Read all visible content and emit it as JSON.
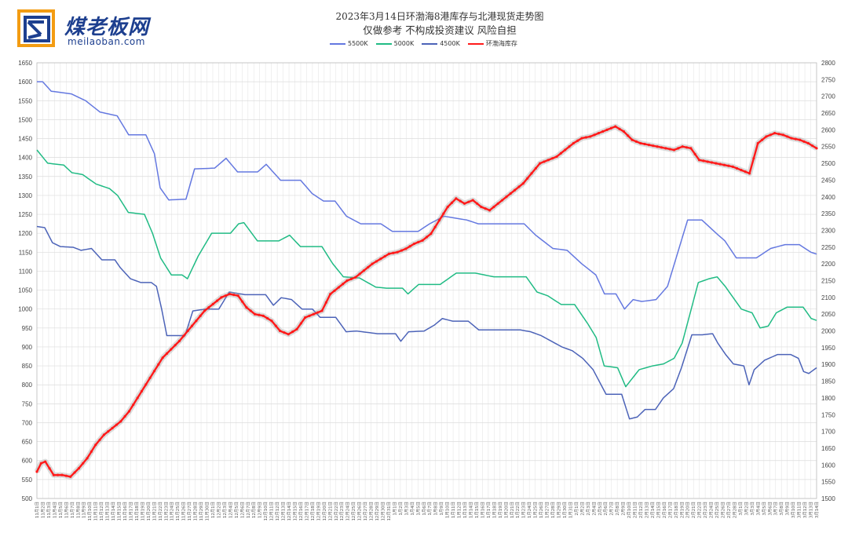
{
  "logo": {
    "name": "煤老板网",
    "url": "meilaoban.com"
  },
  "title_line1": "2023年3月14日环渤海8港库存与北港现货走势图",
  "title_line2": "仅做参考 不构成投资建议 风险自担",
  "chart_data": {
    "type": "line",
    "title": "2023年3月14日环渤海8港库存与北港现货走势图",
    "subtitle": "仅做参考 不构成投资建议 风险自担",
    "grid": true,
    "legend": "top-center",
    "left_axis": {
      "min": 500,
      "max": 1650,
      "step": 50
    },
    "right_axis": {
      "min": 1500,
      "max": 2800,
      "step": 50
    },
    "x_start_date": "2022-11-01",
    "x_end_date": "2023-03-14",
    "x_label_note": "daily dates 11月1日 … 3月14日",
    "series": [
      {
        "name": "5500K",
        "axis": "left",
        "color": "#6478e0",
        "keyframes": [
          [
            0,
            1600
          ],
          [
            2,
            1600
          ],
          [
            5,
            1575
          ],
          [
            8,
            1572
          ],
          [
            12,
            1568
          ],
          [
            17,
            1550
          ],
          [
            22,
            1520
          ],
          [
            28,
            1510
          ],
          [
            32,
            1460
          ],
          [
            38,
            1460
          ],
          [
            41,
            1410
          ],
          [
            43,
            1320
          ],
          [
            46,
            1288
          ],
          [
            52,
            1290
          ],
          [
            55,
            1370
          ],
          [
            62,
            1372
          ],
          [
            66,
            1398
          ],
          [
            70,
            1362
          ],
          [
            77,
            1362
          ],
          [
            80,
            1382
          ],
          [
            85,
            1340
          ],
          [
            92,
            1340
          ],
          [
            96,
            1305
          ],
          [
            100,
            1285
          ],
          [
            104,
            1285
          ],
          [
            108,
            1245
          ],
          [
            113,
            1225
          ],
          [
            120,
            1225
          ],
          [
            124,
            1205
          ],
          [
            133,
            1205
          ],
          [
            137,
            1225
          ],
          [
            142,
            1245
          ],
          [
            150,
            1235
          ],
          [
            154,
            1225
          ],
          [
            170,
            1225
          ],
          [
            174,
            1195
          ],
          [
            180,
            1160
          ],
          [
            185,
            1155
          ],
          [
            190,
            1120
          ],
          [
            195,
            1090
          ],
          [
            198,
            1040
          ],
          [
            202,
            1040
          ],
          [
            205,
            1000
          ],
          [
            208,
            1025
          ],
          [
            211,
            1020
          ],
          [
            216,
            1025
          ],
          [
            220,
            1060
          ],
          [
            224,
            1160
          ],
          [
            227,
            1235
          ],
          [
            232,
            1235
          ],
          [
            237,
            1200
          ],
          [
            240,
            1180
          ],
          [
            244,
            1135
          ],
          [
            251,
            1135
          ],
          [
            256,
            1160
          ],
          [
            261,
            1170
          ],
          [
            266,
            1170
          ],
          [
            270,
            1150
          ],
          [
            272,
            1145
          ]
        ]
      },
      {
        "name": "5000K",
        "axis": "left",
        "color": "#20bb84",
        "keyframes": [
          [
            0,
            1420
          ],
          [
            4,
            1385
          ],
          [
            10,
            1380
          ],
          [
            13,
            1360
          ],
          [
            17,
            1355
          ],
          [
            22,
            1330
          ],
          [
            27,
            1318
          ],
          [
            30,
            1300
          ],
          [
            34,
            1255
          ],
          [
            40,
            1250
          ],
          [
            43,
            1200
          ],
          [
            46,
            1135
          ],
          [
            50,
            1090
          ],
          [
            54,
            1090
          ],
          [
            56,
            1080
          ],
          [
            60,
            1140
          ],
          [
            65,
            1200
          ],
          [
            72,
            1200
          ],
          [
            75,
            1225
          ],
          [
            77,
            1228
          ],
          [
            82,
            1180
          ],
          [
            90,
            1180
          ],
          [
            94,
            1195
          ],
          [
            98,
            1165
          ],
          [
            106,
            1165
          ],
          [
            110,
            1120
          ],
          [
            114,
            1085
          ],
          [
            120,
            1082
          ],
          [
            126,
            1058
          ],
          [
            130,
            1055
          ],
          [
            136,
            1055
          ],
          [
            138,
            1040
          ],
          [
            142,
            1065
          ],
          [
            150,
            1065
          ],
          [
            156,
            1095
          ],
          [
            163,
            1095
          ],
          [
            170,
            1085
          ],
          [
            182,
            1085
          ],
          [
            186,
            1045
          ],
          [
            190,
            1035
          ],
          [
            195,
            1012
          ],
          [
            200,
            1012
          ],
          [
            205,
            960
          ],
          [
            208,
            925
          ],
          [
            211,
            850
          ],
          [
            216,
            845
          ],
          [
            219,
            795
          ],
          [
            224,
            840
          ],
          [
            229,
            850
          ],
          [
            233,
            855
          ],
          [
            237,
            870
          ],
          [
            240,
            910
          ],
          [
            243,
            990
          ],
          [
            246,
            1070
          ],
          [
            250,
            1080
          ],
          [
            253,
            1085
          ],
          [
            256,
            1060
          ],
          [
            259,
            1030
          ],
          [
            262,
            1000
          ],
          [
            266,
            990
          ],
          [
            269,
            950
          ],
          [
            272,
            955
          ],
          [
            275,
            990
          ],
          [
            279,
            1005
          ],
          [
            285,
            1005
          ],
          [
            288,
            975
          ],
          [
            290,
            970
          ]
        ]
      },
      {
        "name": "4500K",
        "axis": "left",
        "color": "#4c63b8",
        "keyframes": [
          [
            0,
            1218
          ],
          [
            3,
            1215
          ],
          [
            6,
            1175
          ],
          [
            9,
            1165
          ],
          [
            14,
            1163
          ],
          [
            17,
            1155
          ],
          [
            21,
            1160
          ],
          [
            25,
            1130
          ],
          [
            30,
            1130
          ],
          [
            32,
            1110
          ],
          [
            36,
            1080
          ],
          [
            40,
            1070
          ],
          [
            44,
            1070
          ],
          [
            46,
            1060
          ],
          [
            48,
            1000
          ],
          [
            50,
            930
          ],
          [
            57,
            930
          ],
          [
            60,
            995
          ],
          [
            65,
            1000
          ],
          [
            70,
            1000
          ],
          [
            74,
            1045
          ],
          [
            80,
            1038
          ],
          [
            88,
            1038
          ],
          [
            91,
            1010
          ],
          [
            94,
            1030
          ],
          [
            98,
            1025
          ],
          [
            102,
            1000
          ],
          [
            106,
            1000
          ],
          [
            109,
            978
          ],
          [
            115,
            978
          ],
          [
            119,
            940
          ],
          [
            123,
            942
          ],
          [
            131,
            935
          ],
          [
            138,
            935
          ],
          [
            140,
            915
          ],
          [
            143,
            940
          ],
          [
            149,
            942
          ],
          [
            153,
            958
          ],
          [
            156,
            975
          ],
          [
            160,
            968
          ],
          [
            166,
            968
          ],
          [
            170,
            945
          ],
          [
            178,
            945
          ],
          [
            186,
            945
          ],
          [
            190,
            940
          ],
          [
            194,
            930
          ],
          [
            198,
            915
          ],
          [
            202,
            900
          ],
          [
            206,
            890
          ],
          [
            210,
            870
          ],
          [
            214,
            840
          ],
          [
            219,
            775
          ],
          [
            225,
            775
          ],
          [
            228,
            710
          ],
          [
            231,
            715
          ],
          [
            234,
            735
          ],
          [
            238,
            735
          ],
          [
            241,
            765
          ],
          [
            245,
            790
          ],
          [
            248,
            845
          ],
          [
            252,
            932
          ],
          [
            256,
            932
          ],
          [
            260,
            935
          ],
          [
            262,
            910
          ],
          [
            265,
            880
          ],
          [
            268,
            855
          ],
          [
            272,
            850
          ],
          [
            274,
            800
          ],
          [
            276,
            840
          ],
          [
            280,
            865
          ],
          [
            285,
            880
          ],
          [
            290,
            880
          ],
          [
            293,
            870
          ],
          [
            295,
            835
          ],
          [
            297,
            830
          ],
          [
            300,
            845
          ]
        ]
      },
      {
        "name": "环渤海库存",
        "axis": "right",
        "color": "#ff1a1a",
        "keyframes": [
          [
            0,
            1580
          ],
          [
            3,
            1605
          ],
          [
            6,
            1610
          ],
          [
            9,
            1590
          ],
          [
            12,
            1570
          ],
          [
            18,
            1570
          ],
          [
            24,
            1565
          ],
          [
            30,
            1590
          ],
          [
            36,
            1620
          ],
          [
            42,
            1660
          ],
          [
            48,
            1690
          ],
          [
            54,
            1710
          ],
          [
            60,
            1730
          ],
          [
            66,
            1760
          ],
          [
            72,
            1800
          ],
          [
            78,
            1840
          ],
          [
            84,
            1880
          ],
          [
            90,
            1920
          ],
          [
            96,
            1945
          ],
          [
            102,
            1970
          ],
          [
            108,
            2000
          ],
          [
            114,
            2030
          ],
          [
            120,
            2060
          ],
          [
            126,
            2080
          ],
          [
            132,
            2100
          ],
          [
            138,
            2110
          ],
          [
            144,
            2105
          ],
          [
            150,
            2070
          ],
          [
            156,
            2050
          ],
          [
            162,
            2045
          ],
          [
            168,
            2030
          ],
          [
            174,
            2000
          ],
          [
            180,
            1990
          ],
          [
            186,
            2005
          ],
          [
            192,
            2040
          ],
          [
            198,
            2050
          ],
          [
            204,
            2060
          ],
          [
            210,
            2110
          ],
          [
            216,
            2130
          ],
          [
            222,
            2150
          ],
          [
            228,
            2160
          ],
          [
            234,
            2180
          ],
          [
            240,
            2200
          ],
          [
            246,
            2215
          ],
          [
            252,
            2230
          ],
          [
            258,
            2235
          ],
          [
            264,
            2245
          ],
          [
            270,
            2260
          ],
          [
            276,
            2270
          ],
          [
            282,
            2290
          ],
          [
            288,
            2330
          ],
          [
            294,
            2370
          ],
          [
            300,
            2395
          ],
          [
            306,
            2380
          ],
          [
            312,
            2390
          ],
          [
            318,
            2370
          ],
          [
            324,
            2360
          ],
          [
            330,
            2380
          ],
          [
            336,
            2400
          ],
          [
            342,
            2420
          ],
          [
            348,
            2440
          ],
          [
            354,
            2470
          ],
          [
            360,
            2500
          ],
          [
            366,
            2510
          ],
          [
            372,
            2520
          ],
          [
            378,
            2540
          ],
          [
            384,
            2560
          ],
          [
            390,
            2575
          ],
          [
            396,
            2580
          ],
          [
            402,
            2590
          ],
          [
            408,
            2600
          ],
          [
            414,
            2610
          ],
          [
            420,
            2595
          ],
          [
            426,
            2570
          ],
          [
            432,
            2560
          ],
          [
            438,
            2555
          ],
          [
            444,
            2550
          ],
          [
            450,
            2545
          ],
          [
            456,
            2540
          ],
          [
            462,
            2550
          ],
          [
            468,
            2545
          ],
          [
            474,
            2510
          ],
          [
            480,
            2505
          ],
          [
            486,
            2500
          ],
          [
            492,
            2495
          ],
          [
            498,
            2490
          ],
          [
            504,
            2480
          ],
          [
            510,
            2470
          ],
          [
            516,
            2560
          ],
          [
            522,
            2580
          ],
          [
            528,
            2590
          ],
          [
            534,
            2585
          ],
          [
            540,
            2575
          ],
          [
            546,
            2570
          ],
          [
            552,
            2560
          ],
          [
            558,
            2545
          ]
        ]
      }
    ]
  }
}
